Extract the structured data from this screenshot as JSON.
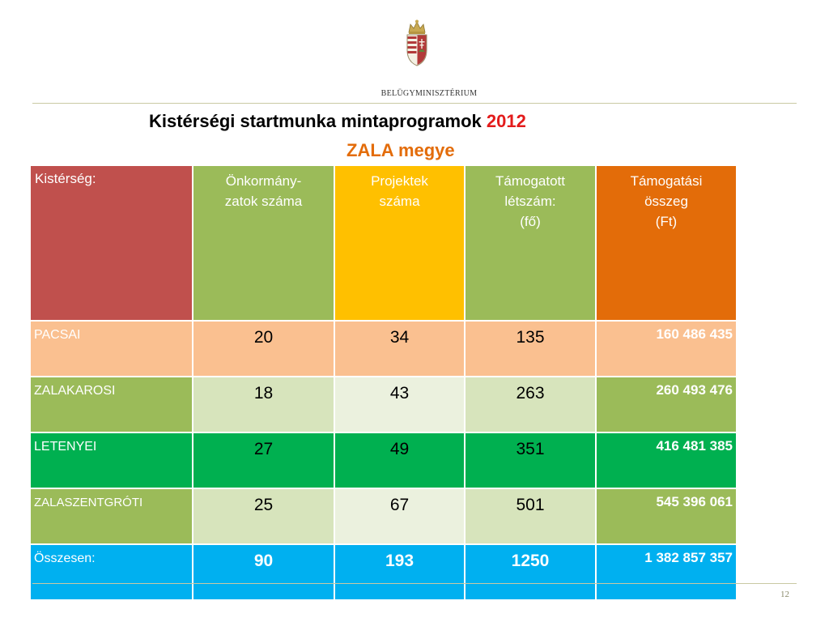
{
  "header": {
    "ministry_name": "BELÜGYMINISZTÉRIUM"
  },
  "title": {
    "line1": "Kistérségi startmunka mintaprogramok ",
    "year": "2012",
    "line2": "ZALA megye"
  },
  "table": {
    "columns": [
      "Kistérség:",
      "Önkormány-\nzatok száma",
      "Projektek\nszáma",
      "Támogatott\nlétszám:\n(fő)",
      "Támogatási\nösszeg\n(Ft)"
    ],
    "rows": [
      {
        "name": "PACSAI",
        "onkormanyzatok": "20",
        "projektek": "34",
        "letszam": "135",
        "osszeg": "160 486 435"
      },
      {
        "name": "ZALAKAROSI",
        "onkormanyzatok": "18",
        "projektek": "43",
        "letszam": "263",
        "osszeg": "260 493 476"
      },
      {
        "name": "LETENYEI",
        "onkormanyzatok": "27",
        "projektek": "49",
        "letszam": "351",
        "osszeg": "416 481 385"
      },
      {
        "name": "ZALASZENTGRÓTI",
        "onkormanyzatok": "25",
        "projektek": "67",
        "letszam": "501",
        "osszeg": "545 396 061"
      }
    ],
    "total": {
      "name": "Összesen:",
      "onkormanyzatok": "90",
      "projektek": "193",
      "letszam": "1250",
      "osszeg": "1 382 857 357"
    }
  },
  "footer": {
    "page_number": "12"
  },
  "colors": {
    "header_red": "#c0504d",
    "header_green": "#9bbb59",
    "header_yellow": "#ffc000",
    "header_orange": "#e36c09",
    "row_peach": "#fac090",
    "row_bright_green": "#00b050",
    "total_blue": "#00b0f0",
    "title_year": "#e31b1b",
    "subtitle": "#e36c0a"
  },
  "icons": {
    "logo": "hungarian-coat-of-arms-icon"
  }
}
